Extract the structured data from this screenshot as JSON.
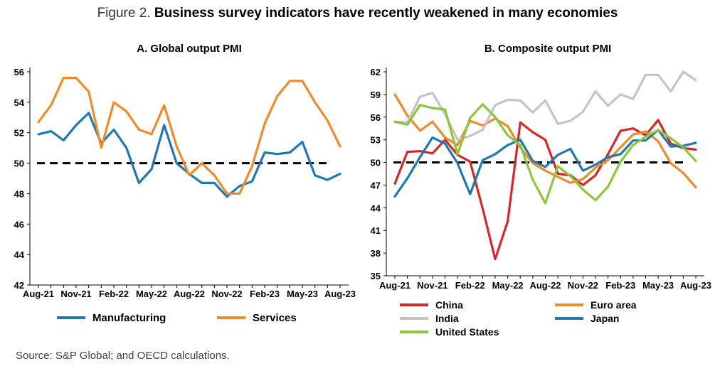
{
  "figure": {
    "prefix": "Figure 2. ",
    "title": "Business survey indicators have recently weakened in many economies",
    "source": "Source: S&P Global; and OECD calculations."
  },
  "chart_data": [
    {
      "type": "line",
      "title": "A. Global output PMI",
      "xlabel": "",
      "ylabel": "",
      "ylim": [
        42,
        56
      ],
      "yticks": [
        42,
        44,
        46,
        48,
        50,
        52,
        54,
        56
      ],
      "x": [
        "Aug-21",
        "Sep-21",
        "Oct-21",
        "Nov-21",
        "Dec-21",
        "Jan-22",
        "Feb-22",
        "Mar-22",
        "Apr-22",
        "May-22",
        "Jun-22",
        "Jul-22",
        "Aug-22",
        "Sep-22",
        "Oct-22",
        "Nov-22",
        "Dec-22",
        "Jan-23",
        "Feb-23",
        "Mar-23",
        "Apr-23",
        "May-23",
        "Jun-23",
        "Jul-23",
        "Aug-23"
      ],
      "x_tick_labels": [
        "Aug-21",
        "Nov-21",
        "Feb-22",
        "May-22",
        "Aug-22",
        "Nov-22",
        "Feb-23",
        "May-23",
        "Aug-23"
      ],
      "reference_line": 50,
      "legend_position": "bottom",
      "series": [
        {
          "name": "Manufacturing",
          "color": "#1f77b4",
          "values": [
            51.9,
            52.1,
            51.5,
            52.5,
            53.3,
            51.3,
            52.2,
            51.0,
            48.7,
            49.6,
            52.5,
            50.0,
            49.3,
            48.7,
            48.7,
            47.8,
            48.5,
            48.8,
            50.7,
            50.6,
            50.7,
            51.4,
            49.2,
            48.9,
            49.3
          ]
        },
        {
          "name": "Services",
          "color": "#f08a2b",
          "values": [
            52.7,
            53.8,
            55.6,
            55.6,
            54.7,
            51.0,
            54.0,
            53.4,
            52.2,
            51.9,
            53.8,
            51.1,
            49.2,
            50.0,
            49.2,
            48.0,
            48.0,
            49.8,
            52.6,
            54.4,
            55.4,
            55.4,
            54.0,
            52.8,
            51.1
          ]
        }
      ]
    },
    {
      "type": "line",
      "title": "B. Composite output PMI",
      "xlabel": "",
      "ylabel": "",
      "ylim": [
        35,
        62
      ],
      "yticks": [
        35,
        38,
        41,
        44,
        47,
        50,
        53,
        56,
        59,
        62
      ],
      "x": [
        "Aug-21",
        "Sep-21",
        "Oct-21",
        "Nov-21",
        "Dec-21",
        "Jan-22",
        "Feb-22",
        "Mar-22",
        "Apr-22",
        "May-22",
        "Jun-22",
        "Jul-22",
        "Aug-22",
        "Sep-22",
        "Oct-22",
        "Nov-22",
        "Dec-22",
        "Jan-23",
        "Feb-23",
        "Mar-23",
        "Apr-23",
        "May-23",
        "Jun-23",
        "Jul-23",
        "Aug-23"
      ],
      "x_tick_labels": [
        "Aug-21",
        "Nov-21",
        "Feb-22",
        "May-22",
        "Aug-22",
        "Nov-22",
        "Feb-23",
        "May-23",
        "Aug-23"
      ],
      "reference_line": 50,
      "legend_position": "bottom",
      "series": [
        {
          "name": "China",
          "color": "#d62728",
          "values": [
            47.2,
            51.4,
            51.5,
            51.2,
            53.0,
            51.0,
            50.1,
            43.9,
            37.2,
            42.2,
            55.3,
            54.0,
            53.0,
            48.5,
            48.3,
            47.0,
            48.3,
            51.1,
            54.2,
            54.5,
            53.6,
            55.6,
            52.5,
            51.9,
            51.7
          ]
        },
        {
          "name": "Euro area",
          "color": "#f08a2b",
          "values": [
            59.0,
            56.2,
            54.2,
            55.4,
            53.3,
            52.3,
            55.5,
            54.9,
            55.8,
            54.8,
            52.0,
            49.9,
            48.9,
            48.1,
            47.3,
            47.8,
            49.3,
            50.3,
            52.0,
            53.7,
            54.1,
            52.8,
            49.9,
            48.6,
            46.7
          ]
        },
        {
          "name": "India",
          "color": "#c4c4c4",
          "values": [
            55.4,
            55.3,
            58.7,
            59.2,
            56.4,
            53.0,
            53.5,
            54.3,
            57.6,
            58.3,
            58.2,
            56.6,
            58.2,
            55.1,
            55.5,
            56.7,
            59.4,
            57.5,
            59.0,
            58.4,
            61.6,
            61.6,
            59.4,
            62.0,
            60.9
          ]
        },
        {
          "name": "Japan",
          "color": "#1f77b4",
          "values": [
            45.5,
            47.9,
            50.7,
            53.3,
            52.5,
            49.9,
            45.8,
            50.3,
            51.1,
            52.3,
            53.0,
            50.2,
            49.4,
            51.0,
            51.8,
            48.9,
            49.7,
            50.7,
            51.1,
            52.9,
            52.9,
            54.3,
            52.1,
            52.2,
            52.6
          ]
        },
        {
          "name": "United States",
          "color": "#8cc63e",
          "values": [
            55.4,
            55.0,
            57.6,
            57.2,
            57.0,
            51.1,
            55.9,
            57.7,
            56.0,
            53.6,
            52.3,
            47.7,
            44.6,
            49.5,
            48.2,
            46.4,
            45.0,
            46.8,
            50.1,
            52.3,
            53.4,
            54.3,
            53.2,
            52.0,
            50.2
          ]
        }
      ]
    }
  ]
}
